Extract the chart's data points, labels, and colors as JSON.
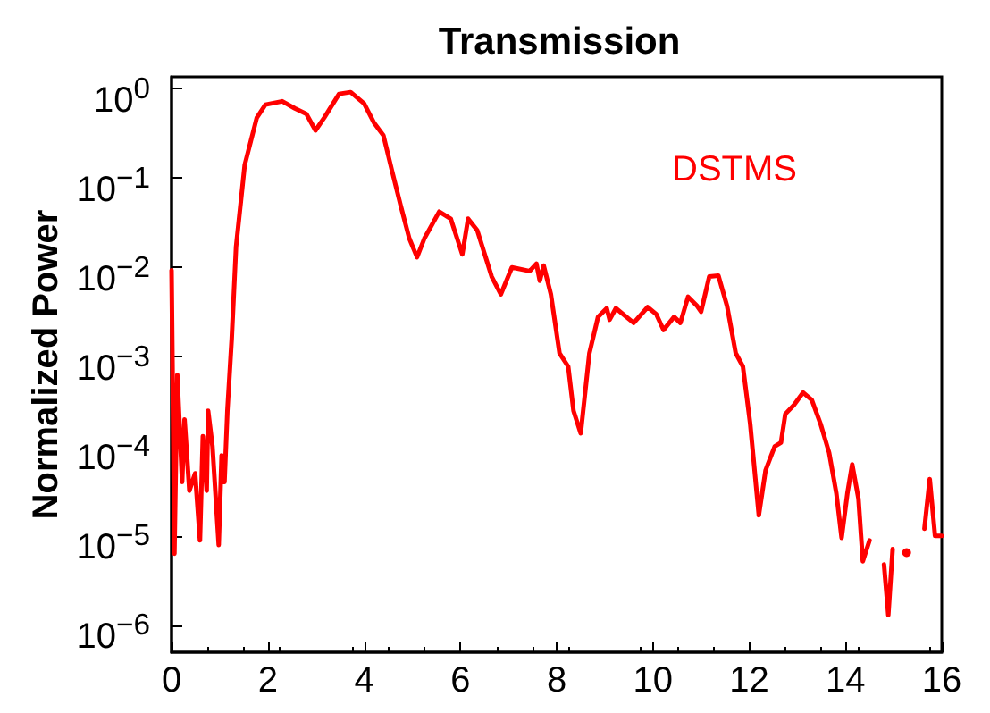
{
  "chart_data": {
    "type": "line",
    "title": "Transmission",
    "ylabel": "Normalized Power",
    "log": "y",
    "legend": "top right",
    "grid": false,
    "marker": "none",
    "line_style": "solid",
    "xlim": [
      0,
      16
    ],
    "xticks": [
      0,
      2,
      4,
      6,
      8,
      10,
      12,
      14,
      16
    ],
    "ylim": [
      5e-07,
      1.35
    ],
    "yticks": [
      {
        "value": 1e-06,
        "label": "10$^{−6}$"
      },
      {
        "value": 1e-05,
        "label": "10$^{−5}$"
      },
      {
        "value": 0.0001,
        "label": "10$^{−4}$"
      },
      {
        "value": 0.001,
        "label": "10$^{−3}$"
      },
      {
        "value": 0.01,
        "label": "10$^{−2}$"
      },
      {
        "value": 0.1,
        "label": "10$^{−1}$"
      },
      {
        "value": 1,
        "label": "10$^{0}$"
      }
    ],
    "series": [
      {
        "name": "DSTMS",
        "color": "#ff0000",
        "x": [
          0,
          0.06,
          0.12,
          0.22,
          0.27,
          0.37,
          0.49,
          0.59,
          0.65,
          0.73,
          0.76,
          0.85,
          0.98,
          1.04,
          1.1,
          1.16,
          1.25,
          1.34,
          1.52,
          1.77,
          1.95,
          2.3,
          2.56,
          2.8,
          2.99,
          3.17,
          3.48,
          3.72,
          4.0,
          4.21,
          4.4,
          4.58,
          4.76,
          4.94,
          5.1,
          5.25,
          5.56,
          5.8,
          6.04,
          6.16,
          6.35,
          6.65,
          6.84,
          7.07,
          7.44,
          7.58,
          7.65,
          7.73,
          7.88,
          8.06,
          8.24,
          8.35,
          8.5,
          8.68,
          8.86,
          9.04,
          9.1,
          9.23,
          9.6,
          9.89,
          10.07,
          10.22,
          10.44,
          10.57,
          10.73,
          10.92,
          11.0,
          11.17,
          11.36,
          11.54,
          11.72,
          11.87,
          12.02,
          12.2,
          12.34,
          12.53,
          12.66,
          12.75,
          12.93,
          13.12,
          13.3,
          13.48,
          13.66,
          13.81,
          13.92,
          14.04,
          14.14,
          14.27,
          14.36,
          14.5,
          14.65,
          14.8,
          14.89,
          14.98,
          15.07,
          15.27,
          15.46,
          15.64,
          15.75,
          15.86,
          16.0
        ],
        "values": [
          0.0093,
          6.3e-06,
          0.00063,
          4e-05,
          0.0002,
          3.2e-05,
          5e-05,
          8.9e-06,
          0.00013,
          3.2e-05,
          0.00025,
          0.0001,
          7.9e-06,
          7.9e-05,
          4e-05,
          0.00025,
          0.0016,
          0.017,
          0.14,
          0.47,
          0.66,
          0.72,
          0.6,
          0.52,
          0.34,
          0.47,
          0.87,
          0.91,
          0.68,
          0.41,
          0.3,
          0.12,
          0.049,
          0.021,
          0.013,
          0.021,
          0.042,
          0.035,
          0.014,
          0.035,
          0.026,
          0.0079,
          0.005,
          0.01,
          0.0091,
          0.011,
          0.0071,
          0.0105,
          0.005,
          0.0011,
          0.00078,
          0.00025,
          0.00014,
          0.0011,
          0.0028,
          0.0035,
          0.0026,
          0.0035,
          0.0024,
          0.0036,
          0.003,
          0.002,
          0.0028,
          0.0024,
          0.0047,
          0.0037,
          0.0032,
          0.0079,
          0.0081,
          0.0037,
          0.0011,
          0.00078,
          0.00018,
          1.7e-05,
          5.4e-05,
          0.0001,
          0.00011,
          0.00023,
          0.00029,
          0.0004,
          0.00033,
          0.00018,
          8.5e-05,
          3e-05,
          9.5e-06,
          3e-05,
          6.3e-05,
          2.6e-05,
          5.2e-06,
          8.9e-06,
          null,
          4.8e-06,
          1.3e-06,
          7.1e-06,
          null,
          6.5e-06,
          null,
          1.2e-05,
          4.3e-05,
          1e-05,
          1e-05
        ]
      }
    ]
  }
}
